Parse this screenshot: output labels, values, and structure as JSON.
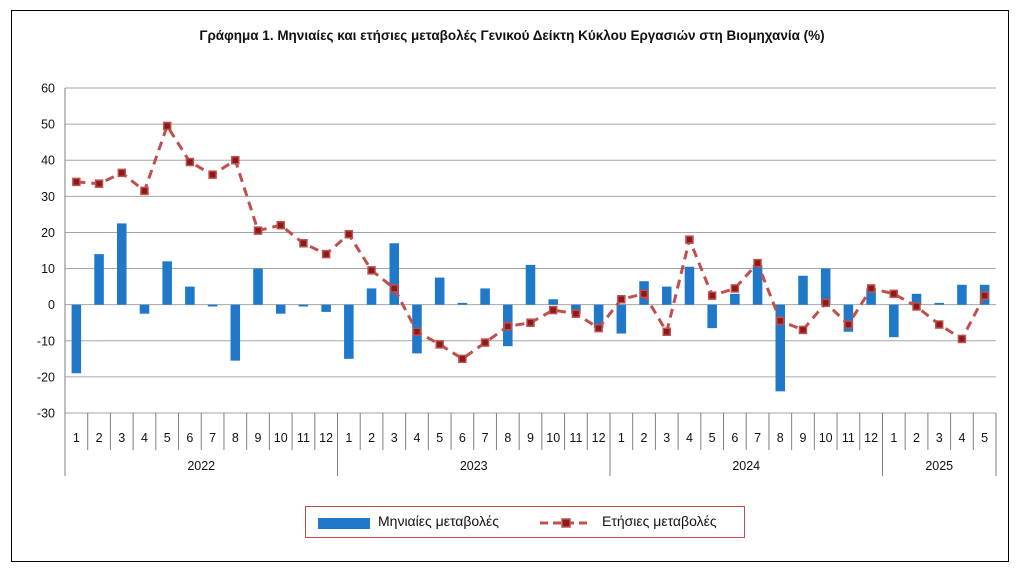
{
  "title": "Γράφημα 1. Μηνιαίες και ετήσιες μεταβολές  Γενικού Δείκτη Κύκλου Εργασιών στη Βιομηχανία (%)",
  "colors": {
    "monthly": "#1f78c8",
    "annual_line": "#c0504d",
    "annual_marker_fill": "#8b1a1a",
    "grid": "#a6a6a6"
  },
  "chart_data": {
    "type": "bar+line",
    "title": "Γράφημα 1. Μηνιαίες και ετήσιες μεταβολές  Γενικού Δείκτη Κύκλου Εργασιών στη Βιομηχανία (%)",
    "ylim": [
      -30,
      60
    ],
    "yticks": [
      60,
      50,
      40,
      30,
      20,
      10,
      0,
      -10,
      -20,
      -30
    ],
    "grid": true,
    "legend_position": "bottom",
    "categories": [
      "1",
      "2",
      "3",
      "4",
      "5",
      "6",
      "7",
      "8",
      "9",
      "10",
      "11",
      "12",
      "1",
      "2",
      "3",
      "4",
      "5",
      "6",
      "7",
      "8",
      "9",
      "10",
      "11",
      "12",
      "1",
      "2",
      "3",
      "4",
      "5",
      "6",
      "7",
      "8",
      "9",
      "10",
      "11",
      "12",
      "1",
      "2",
      "3",
      "4",
      "5"
    ],
    "years": [
      {
        "label": "2022",
        "count": 12
      },
      {
        "label": "2023",
        "count": 12
      },
      {
        "label": "2024",
        "count": 12
      },
      {
        "label": "2025",
        "count": 5
      }
    ],
    "series": [
      {
        "name": "Μηνιαίες μεταβολές",
        "kind": "bar",
        "values": [
          -19,
          14,
          22.5,
          -2.5,
          12,
          5,
          -0.5,
          -15.5,
          10,
          -2.5,
          -0.5,
          -2,
          -15,
          4.5,
          17,
          -13.5,
          7.5,
          0.5,
          4.5,
          -11.5,
          11,
          1.5,
          -2.5,
          -6.5,
          -8,
          6.5,
          5,
          10.5,
          -6.5,
          3,
          11,
          -24,
          8,
          10,
          -7.5,
          4.5,
          -9,
          3,
          0.5,
          5.5,
          5.5
        ]
      },
      {
        "name": "Ετήσιες μεταβολές",
        "kind": "line",
        "values": [
          34,
          33.5,
          36.5,
          31.5,
          49.5,
          39.5,
          36,
          40,
          20.5,
          22,
          17,
          14,
          19.5,
          9.5,
          4.5,
          -7.5,
          -11,
          -15,
          -10.5,
          -6,
          -5,
          -1.5,
          -2.5,
          -6.5,
          1.5,
          3,
          -7.5,
          18,
          2.5,
          4.5,
          11.5,
          -4.5,
          -7,
          0.5,
          -5.5,
          4.5,
          3,
          -0.5,
          -5.5,
          -9.5,
          2.5
        ]
      }
    ]
  },
  "legend": {
    "monthly_label": "Μηνιαίες μεταβολές",
    "annual_label": "Ετήσιες μεταβολές"
  }
}
